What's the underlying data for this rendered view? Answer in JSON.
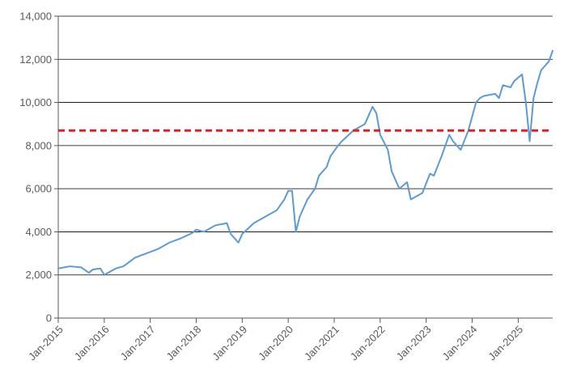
{
  "chart_data": {
    "type": "line",
    "title": "",
    "xlabel": "",
    "ylabel": "",
    "ylim": [
      0,
      14000
    ],
    "yticks": [
      0,
      2000,
      4000,
      6000,
      8000,
      10000,
      12000,
      14000
    ],
    "ytick_labels": [
      "0",
      "2,000",
      "4,000",
      "6,000",
      "8,000",
      "10,000",
      "12,000",
      "14,000"
    ],
    "xlim": [
      "2015-01",
      "2025-10"
    ],
    "xticks": [
      "2015-01",
      "2016-01",
      "2017-01",
      "2018-01",
      "2019-01",
      "2020-01",
      "2021-01",
      "2022-01",
      "2023-01",
      "2024-01",
      "2025-01"
    ],
    "xtick_labels": [
      "Jan-2015",
      "Jan-2016",
      "Jan-2017",
      "Jan-2018",
      "Jan-2019",
      "Jan-2020",
      "Jan-2021",
      "Jan-2022",
      "Jan-2023",
      "Jan-2024",
      "Jan-2025"
    ],
    "grid": "horizontal",
    "legend": "none",
    "reference_line": {
      "y": 8700,
      "color": "#e02020",
      "style": "dashed"
    },
    "series": [
      {
        "color": "#5b9bd5",
        "x": [
          "2015-01",
          "2015-04",
          "2015-07",
          "2015-09",
          "2015-10",
          "2015-12",
          "2016-01",
          "2016-02",
          "2016-04",
          "2016-06",
          "2016-09",
          "2016-12",
          "2017-03",
          "2017-06",
          "2017-09",
          "2017-12",
          "2018-01",
          "2018-03",
          "2018-06",
          "2018-09",
          "2018-10",
          "2018-12",
          "2019-01",
          "2019-04",
          "2019-07",
          "2019-10",
          "2019-12",
          "2020-01",
          "2020-02",
          "2020-03",
          "2020-04",
          "2020-06",
          "2020-08",
          "2020-09",
          "2020-11",
          "2020-12",
          "2021-02",
          "2021-03",
          "2021-06",
          "2021-09",
          "2021-11",
          "2021-12",
          "2022-01",
          "2022-03",
          "2022-04",
          "2022-06",
          "2022-08",
          "2022-09",
          "2022-10",
          "2022-12",
          "2023-02",
          "2023-03",
          "2023-05",
          "2023-07",
          "2023-08",
          "2023-10",
          "2023-12",
          "2024-02",
          "2024-03",
          "2024-04",
          "2024-07",
          "2024-08",
          "2024-09",
          "2024-11",
          "2024-12",
          "2025-02",
          "2025-03",
          "2025-04",
          "2025-05",
          "2025-06",
          "2025-07",
          "2025-08",
          "2025-09",
          "2025-10"
        ],
        "values": [
          2300,
          2400,
          2350,
          2100,
          2250,
          2300,
          2000,
          2100,
          2300,
          2400,
          2800,
          3000,
          3200,
          3500,
          3700,
          3950,
          4100,
          4000,
          4300,
          4400,
          3900,
          3500,
          3900,
          4400,
          4700,
          5000,
          5500,
          5900,
          5900,
          4000,
          4700,
          5500,
          6000,
          6600,
          7000,
          7500,
          8000,
          8200,
          8700,
          9000,
          9800,
          9500,
          8500,
          7800,
          6800,
          6000,
          6300,
          5500,
          5600,
          5800,
          6700,
          6600,
          7500,
          8500,
          8200,
          7800,
          8700,
          10000,
          10200,
          10300,
          10400,
          10200,
          10800,
          10700,
          11000,
          11300,
          10000,
          8200,
          10200,
          10900,
          11500,
          11700,
          11900,
          12400
        ]
      }
    ]
  }
}
